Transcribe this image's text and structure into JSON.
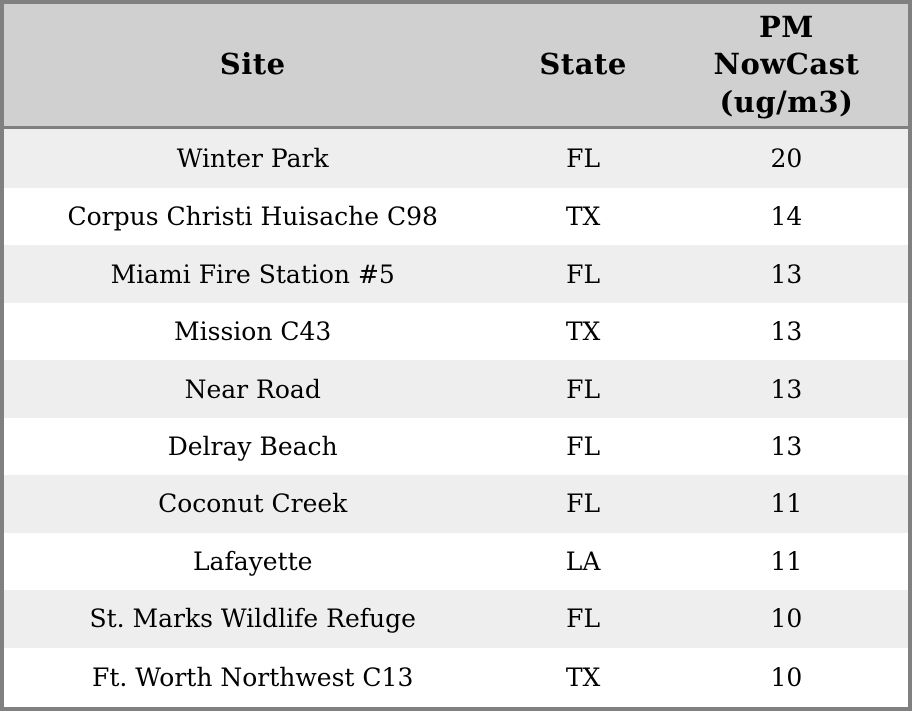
{
  "chart_data": {
    "type": "table",
    "title": "",
    "columns": [
      "Site",
      "State",
      "PM NowCast (ug/m3)"
    ],
    "column_headers_display": [
      "Site",
      "State",
      "PM\nNowCast\n(ug/m3)"
    ],
    "rows": [
      [
        "Winter Park",
        "FL",
        20
      ],
      [
        "Corpus Christi Huisache C98",
        "TX",
        14
      ],
      [
        "Miami Fire Station #5",
        "FL",
        13
      ],
      [
        "Mission C43",
        "TX",
        13
      ],
      [
        "Near Road",
        "FL",
        13
      ],
      [
        "Delray Beach",
        "FL",
        13
      ],
      [
        "Coconut Creek",
        "FL",
        11
      ],
      [
        "Lafayette",
        "LA",
        11
      ],
      [
        "St. Marks Wildlife Refuge",
        "FL",
        10
      ],
      [
        "Ft. Worth Northwest C13",
        "TX",
        10
      ]
    ]
  },
  "colors": {
    "header_background": "#d0d0d0",
    "border": "#808080",
    "row_alt_background": "#eeeeee",
    "row_background": "#ffffff",
    "text": "#000000"
  }
}
